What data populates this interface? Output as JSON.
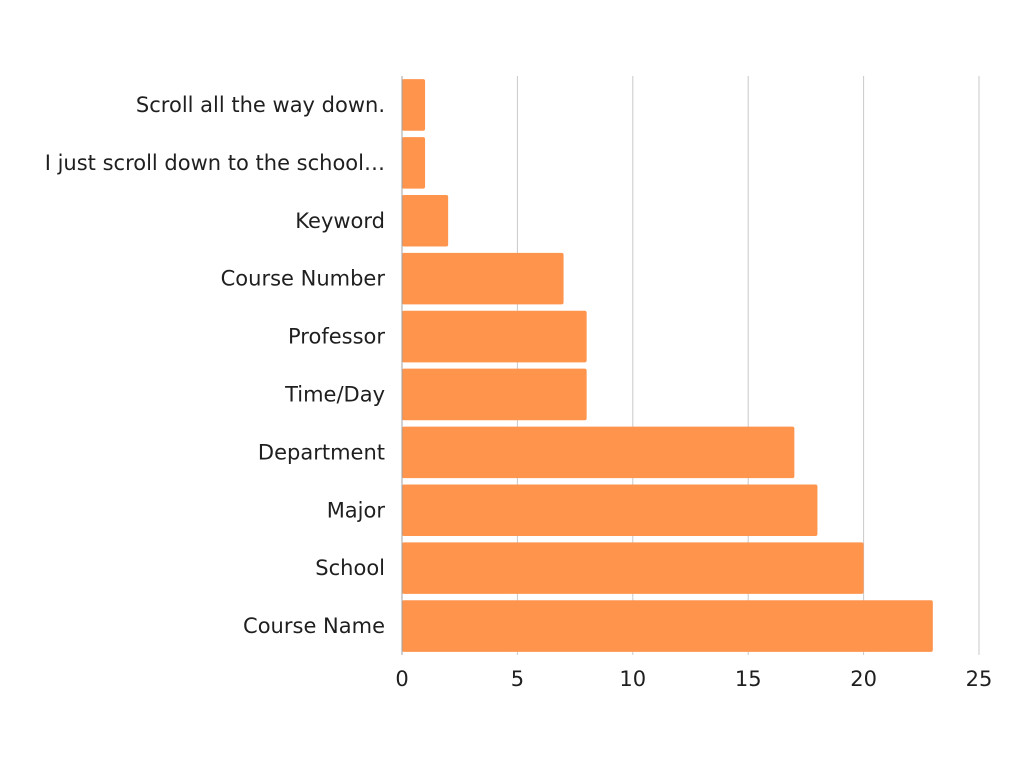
{
  "chart_data": {
    "type": "bar",
    "orientation": "horizontal",
    "categories": [
      "Scroll all the way down.",
      "I just scroll down to the school…",
      "Keyword",
      "Course Number",
      "Professor",
      "Time/Day",
      "Department",
      "Major",
      "School",
      "Course Name"
    ],
    "values": [
      1,
      1,
      2,
      7,
      8,
      8,
      17,
      18,
      20,
      23
    ],
    "title": "",
    "xlabel": "",
    "ylabel": "",
    "xlim": [
      0,
      25
    ],
    "xticks": [
      "0",
      "5",
      "10",
      "15",
      "20",
      "25"
    ],
    "grid": "vertical",
    "legend": "none"
  },
  "colors": {
    "bar": "#ff944d",
    "grid": "#c9c9c9",
    "axis": "#a0a0a0",
    "text": "#1f1f1f"
  }
}
